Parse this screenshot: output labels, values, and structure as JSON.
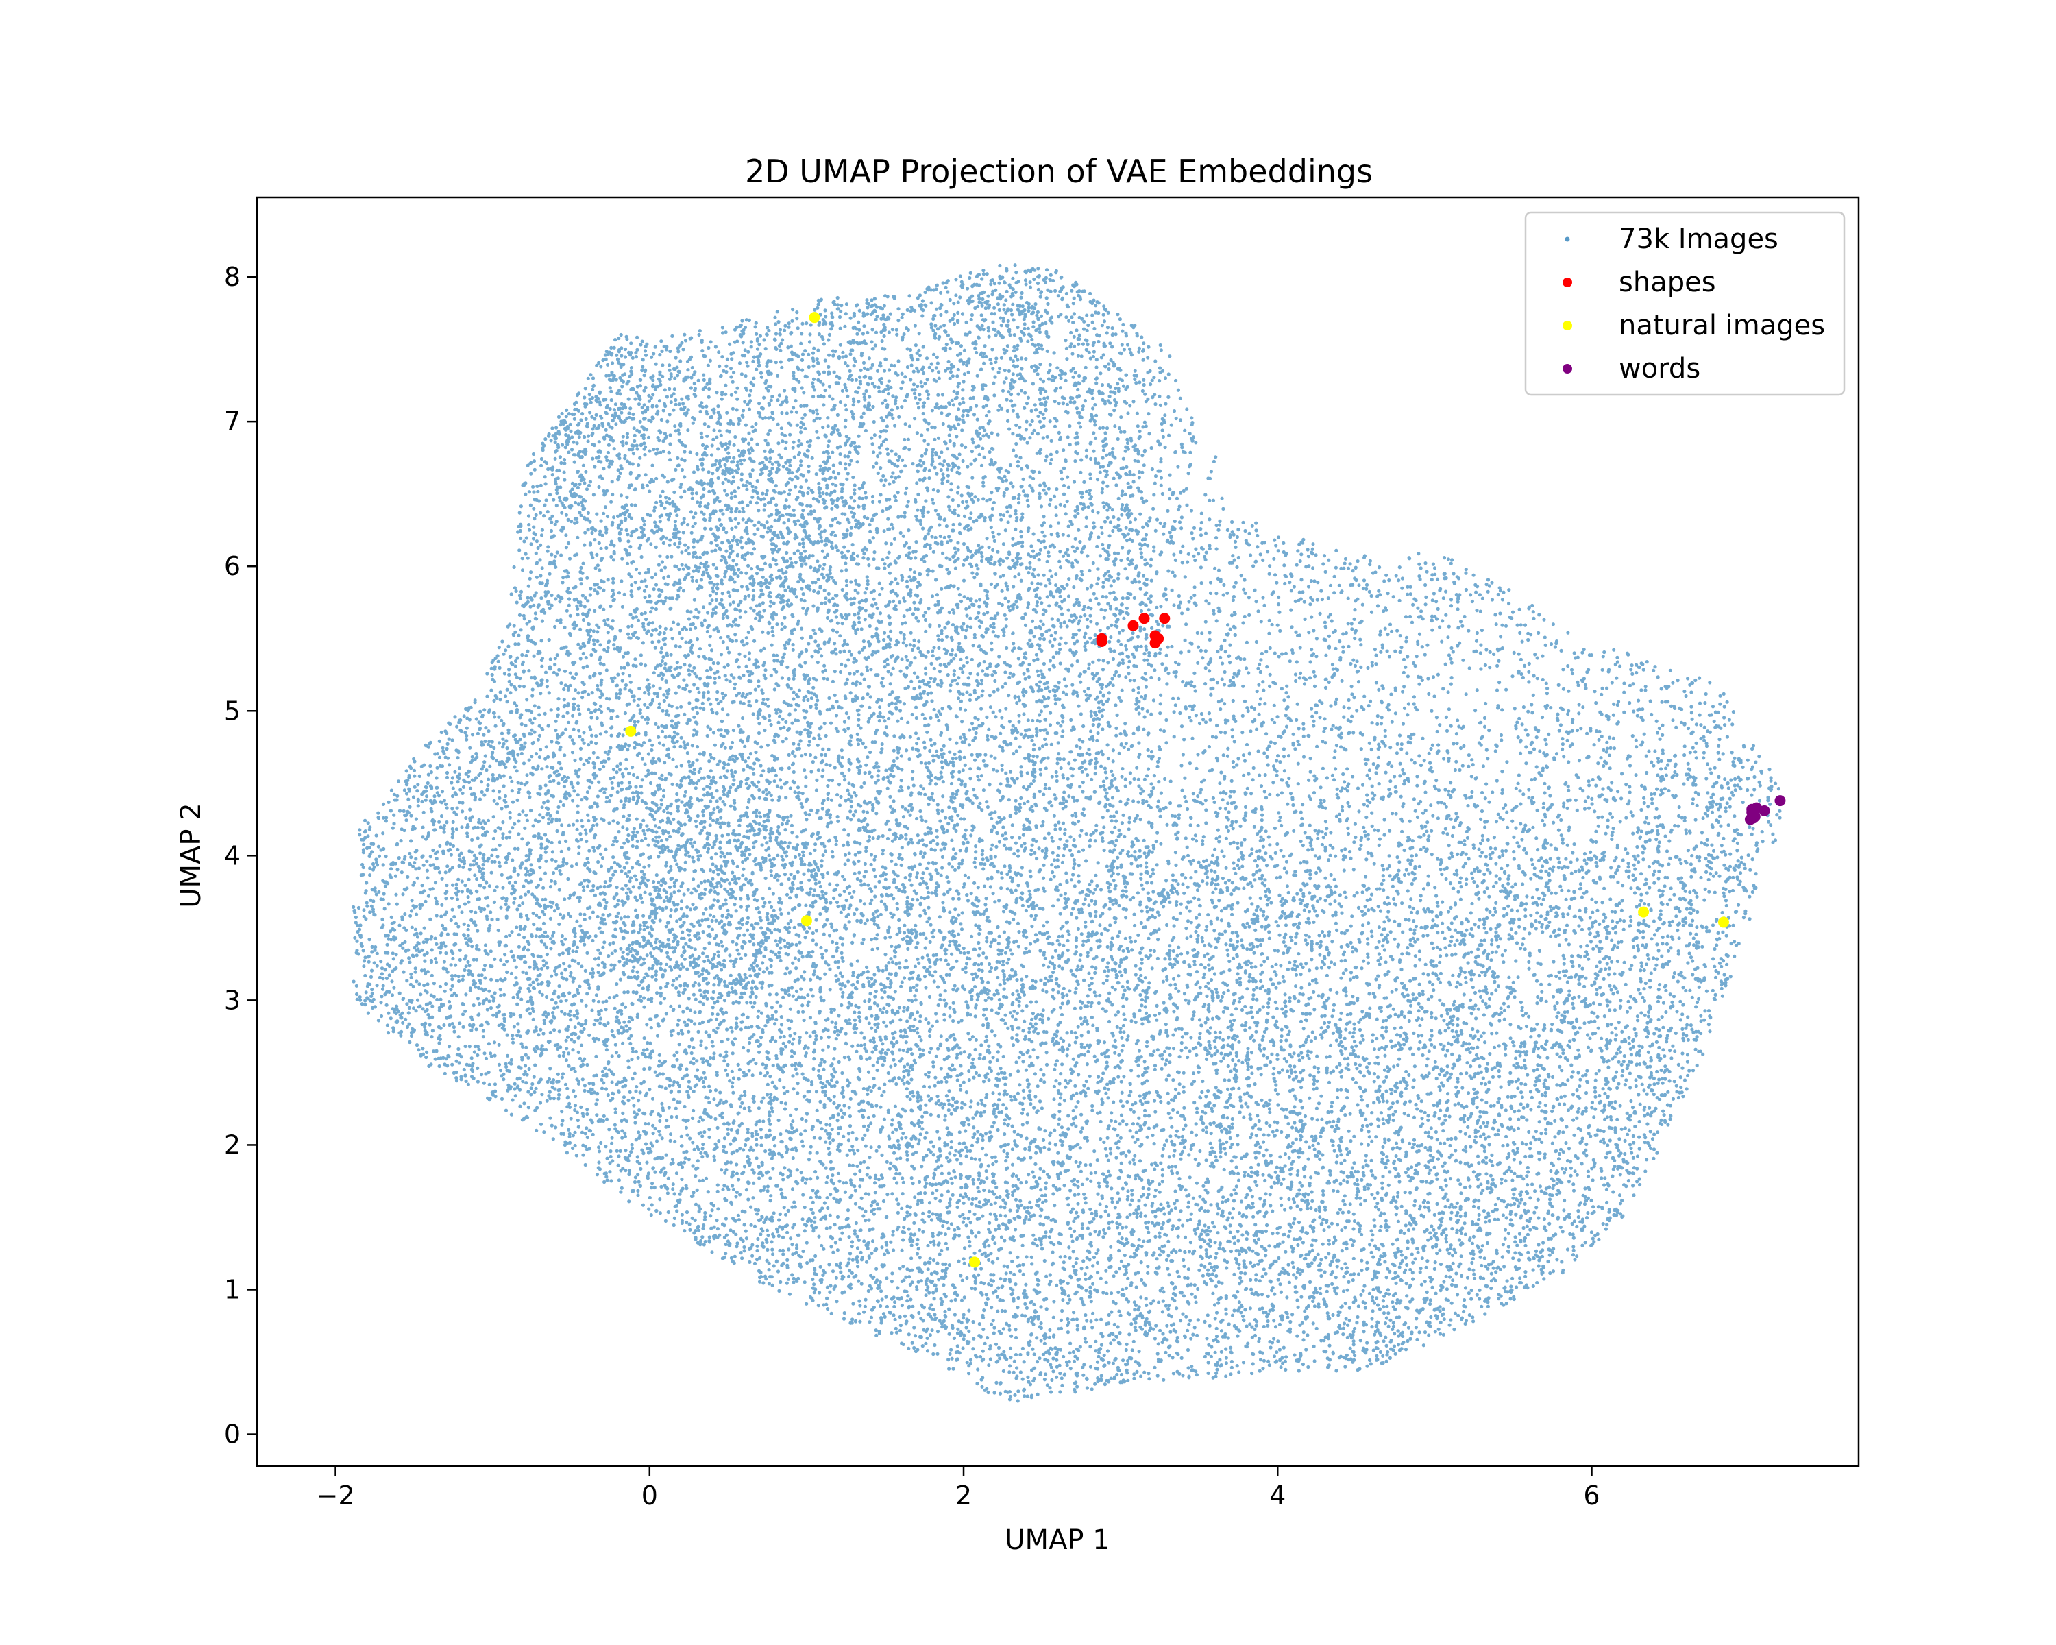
{
  "chart_data": {
    "type": "scatter",
    "title": "2D UMAP Projection of VAE Embeddings",
    "xlabel": "UMAP 1",
    "ylabel": "UMAP 2",
    "xlim": [
      -2.5,
      7.7
    ],
    "ylim": [
      -0.22,
      8.55
    ],
    "xticks": [
      -2,
      0,
      2,
      4,
      6
    ],
    "xtick_labels": [
      "−2",
      "0",
      "2",
      "4",
      "6"
    ],
    "yticks": [
      0,
      1,
      2,
      3,
      4,
      5,
      6,
      7,
      8
    ],
    "ytick_labels": [
      "0",
      "1",
      "2",
      "3",
      "4",
      "5",
      "6",
      "7",
      "8"
    ],
    "grid": false,
    "legend_position": "top-right",
    "background_cloud": {
      "name": "73k Images",
      "color": "#1f77b4",
      "point_count": 73000,
      "approximate_outline": [
        [
          -1.9,
          3.5
        ],
        [
          -1.85,
          4.2
        ],
        [
          -1.5,
          4.7
        ],
        [
          -1.1,
          5.1
        ],
        [
          -0.9,
          5.6
        ],
        [
          -0.8,
          6.7
        ],
        [
          -0.6,
          7.0
        ],
        [
          -0.4,
          7.3
        ],
        [
          -0.2,
          7.6
        ],
        [
          0.1,
          7.6
        ],
        [
          0.6,
          7.7
        ],
        [
          1.1,
          7.85
        ],
        [
          1.7,
          7.9
        ],
        [
          2.2,
          8.1
        ],
        [
          2.6,
          8.05
        ],
        [
          3.0,
          7.75
        ],
        [
          3.3,
          7.5
        ],
        [
          3.4,
          7.2
        ],
        [
          3.6,
          6.8
        ],
        [
          3.7,
          6.4
        ],
        [
          4.4,
          6.1
        ],
        [
          5.0,
          6.1
        ],
        [
          5.4,
          5.9
        ],
        [
          5.8,
          5.6
        ],
        [
          6.4,
          5.35
        ],
        [
          6.8,
          5.2
        ],
        [
          7.0,
          4.9
        ],
        [
          7.2,
          4.5
        ],
        [
          7.2,
          4.2
        ],
        [
          7.05,
          3.7
        ],
        [
          6.9,
          3.2
        ],
        [
          6.7,
          2.6
        ],
        [
          6.45,
          2.0
        ],
        [
          6.2,
          1.5
        ],
        [
          5.8,
          1.1
        ],
        [
          5.2,
          0.75
        ],
        [
          4.6,
          0.45
        ],
        [
          3.8,
          0.4
        ],
        [
          3.0,
          0.35
        ],
        [
          2.3,
          0.2
        ],
        [
          1.8,
          0.5
        ],
        [
          1.2,
          0.8
        ],
        [
          0.6,
          1.1
        ],
        [
          0.0,
          1.5
        ],
        [
          -0.6,
          2.0
        ],
        [
          -1.0,
          2.3
        ],
        [
          -1.5,
          2.6
        ],
        [
          -1.9,
          3.0
        ]
      ]
    },
    "series": [
      {
        "name": "shapes",
        "color": "#ff0000",
        "x": [
          2.88,
          2.88,
          3.08,
          3.15,
          3.28,
          3.22,
          3.24,
          3.22
        ],
        "y": [
          5.48,
          5.5,
          5.59,
          5.64,
          5.64,
          5.47,
          5.5,
          5.52
        ]
      },
      {
        "name": "natural images",
        "color": "#ffff00",
        "x": [
          1.05,
          -0.12,
          1.0,
          2.07,
          6.33,
          6.84
        ],
        "y": [
          7.72,
          4.86,
          3.55,
          1.19,
          3.61,
          3.54
        ]
      },
      {
        "name": "words",
        "color": "#800080",
        "x": [
          7.02,
          7.05,
          7.04,
          7.03,
          7.02,
          7.1,
          7.2,
          7.01
        ],
        "y": [
          4.3,
          4.33,
          4.27,
          4.26,
          4.32,
          4.31,
          4.38,
          4.25
        ]
      }
    ]
  }
}
